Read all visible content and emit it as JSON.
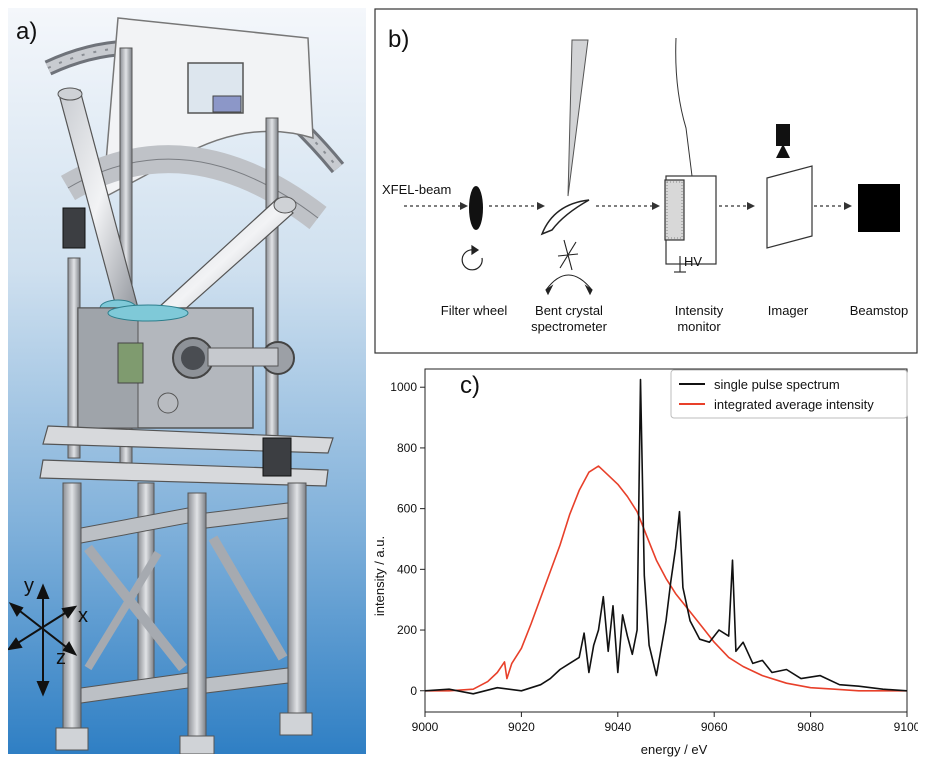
{
  "panel_a": {
    "letter": "a)",
    "axes": {
      "x": "x",
      "y": "y",
      "z": "z"
    }
  },
  "panel_b": {
    "letter": "b)",
    "beam_label": "XFEL-beam",
    "hv_label": "HV",
    "components": [
      {
        "line1": "Filter wheel",
        "line2": ""
      },
      {
        "line1": "Bent crystal",
        "line2": "spectrometer"
      },
      {
        "line1": "Intensity",
        "line2": "monitor"
      },
      {
        "line1": "Imager",
        "line2": ""
      },
      {
        "line1": "Beamstop",
        "line2": ""
      }
    ]
  },
  "panel_c": {
    "letter": "c)",
    "chart_data": {
      "type": "line",
      "xlabel": "energy / eV",
      "ylabel": "intensity / a.u.",
      "xlim": [
        9000,
        9100
      ],
      "ylim": [
        -70,
        1060
      ],
      "xticks": [
        9000,
        9020,
        9040,
        9060,
        9080,
        9100
      ],
      "yticks": [
        0,
        200,
        400,
        600,
        800,
        1000
      ],
      "grid": false,
      "legend_position": "top-right",
      "series": [
        {
          "name": "single pulse spectrum",
          "color": "#111111",
          "x": [
            9000,
            9005,
            9010,
            9015,
            9020,
            9024,
            9026,
            9028,
            9030,
            9032,
            9033,
            9034,
            9035,
            9036,
            9037,
            9038,
            9039,
            9040,
            9041,
            9042,
            9043,
            9044,
            9044.7,
            9045.5,
            9046.5,
            9048,
            9050,
            9051,
            9052,
            9052.8,
            9053.5,
            9055,
            9057,
            9059,
            9061,
            9063,
            9063.8,
            9064.5,
            9066,
            9068,
            9070,
            9072,
            9075,
            9078,
            9082,
            9086,
            9090,
            9095,
            9100
          ],
          "y": [
            0,
            5,
            -10,
            10,
            0,
            20,
            40,
            70,
            90,
            110,
            190,
            60,
            150,
            200,
            310,
            130,
            280,
            60,
            250,
            180,
            120,
            200,
            1025,
            380,
            150,
            50,
            230,
            360,
            470,
            590,
            340,
            230,
            170,
            160,
            200,
            180,
            430,
            130,
            160,
            90,
            100,
            60,
            70,
            40,
            50,
            20,
            15,
            5,
            0
          ]
        },
        {
          "name": "integrated average intensity",
          "color": "#e8402a",
          "x": [
            9000,
            9005,
            9010,
            9013,
            9015,
            9016.5,
            9017,
            9018,
            9020,
            9022,
            9025,
            9028,
            9030,
            9032,
            9034,
            9036,
            9038,
            9040,
            9042,
            9044,
            9046,
            9048,
            9050,
            9052,
            9055,
            9058,
            9060,
            9063,
            9066,
            9070,
            9075,
            9080,
            9085,
            9090,
            9095,
            9100
          ],
          "y": [
            0,
            0,
            5,
            30,
            60,
            95,
            40,
            90,
            140,
            220,
            350,
            480,
            580,
            660,
            720,
            740,
            710,
            680,
            640,
            590,
            510,
            430,
            370,
            320,
            260,
            200,
            160,
            110,
            80,
            50,
            25,
            10,
            5,
            0,
            0,
            0
          ]
        }
      ]
    }
  }
}
